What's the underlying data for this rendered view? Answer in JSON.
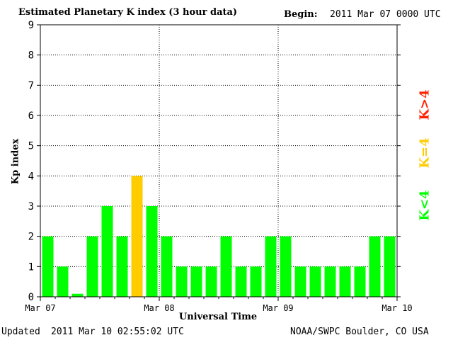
{
  "header": {
    "title": "Estimated Planetary K index (3 hour data)",
    "begin_label": "Begin:",
    "begin_value": "2011 Mar 07 0000 UTC"
  },
  "footer": {
    "updated_label": "Updated",
    "updated_value": "2011 Mar 10 02:55:02 UTC",
    "source": "NOAA/SWPC Boulder, CO USA"
  },
  "legend": {
    "low": "K<4",
    "mid": "K=4",
    "high": "K>4"
  },
  "colors": {
    "low": "#00ff00",
    "mid": "#ffcc00",
    "high": "#ff2200",
    "grid": "#000000"
  },
  "chart_data": {
    "type": "bar",
    "title": "Estimated Planetary K index (3 hour data)",
    "xlabel": "Universal Time",
    "ylabel": "Kp index",
    "ylim": [
      0,
      9
    ],
    "yticks": [
      0,
      1,
      2,
      3,
      4,
      5,
      6,
      7,
      8,
      9
    ],
    "xticks": [
      "Mar 07",
      "Mar 08",
      "Mar 09",
      "Mar 10"
    ],
    "interval_hours": 3,
    "grid": true,
    "values": [
      2,
      1,
      0.1,
      2,
      3,
      2,
      4,
      3,
      2,
      1,
      1,
      1,
      2,
      1,
      1,
      2,
      2,
      1,
      1,
      1,
      1,
      1,
      2,
      2
    ]
  }
}
